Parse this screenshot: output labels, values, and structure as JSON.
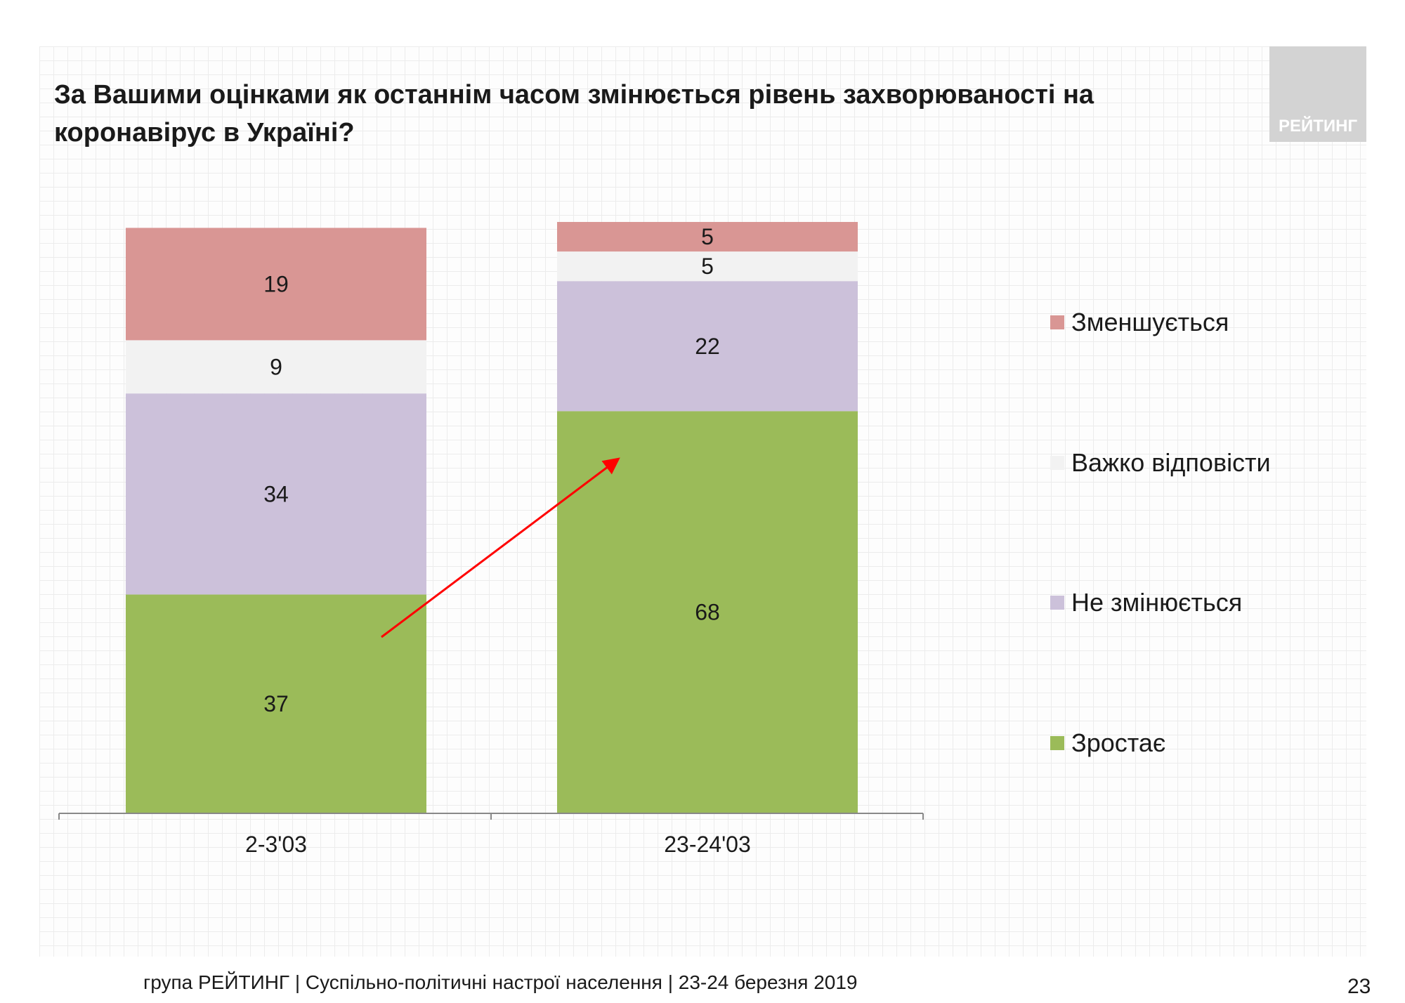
{
  "title": "За Вашими оцінками як останнім часом змінюється рівень захворюваності на коронавірус в Україні?",
  "logo_text": "РЕЙТИНГ",
  "footer": "група РЕЙТИНГ | Суспільно-політичні настрої населення  | 23-24 березня 2019",
  "page_number": "23",
  "chart_data": {
    "type": "bar",
    "stacked": true,
    "categories": [
      "2-3'03",
      "23-24'03"
    ],
    "series": [
      {
        "name": "Зростає",
        "color": "#9BBB59",
        "values": [
          37,
          68
        ]
      },
      {
        "name": "Не змінюється",
        "color": "#CCC1DA",
        "values": [
          34,
          22
        ]
      },
      {
        "name": "Важко відповісти",
        "color": "#F2F2F2",
        "values": [
          9,
          5
        ]
      },
      {
        "name": "Зменшується",
        "color": "#D99694",
        "values": [
          19,
          5
        ]
      }
    ],
    "legend_position": "right",
    "annotation": "red arrow from first bar to second bar indicating increase",
    "annotation_color": "#FF0000",
    "ylim": [
      0,
      100
    ],
    "grid": false
  }
}
